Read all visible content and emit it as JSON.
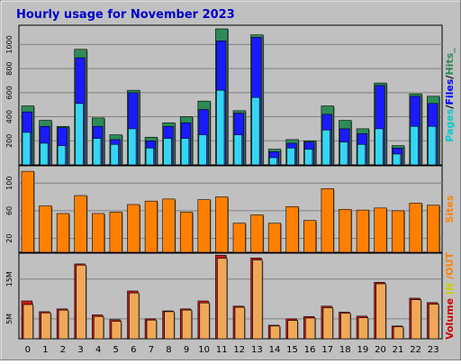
{
  "chart_data": {
    "title": "Hourly usage for November 2023",
    "hours": [
      "0",
      "1",
      "2",
      "3",
      "4",
      "5",
      "6",
      "7",
      "8",
      "9",
      "10",
      "11",
      "12",
      "13",
      "14",
      "15",
      "16",
      "17",
      "18",
      "19",
      "20",
      "21",
      "22",
      "23"
    ],
    "panels": [
      {
        "type": "bar",
        "side_label": [
          "Pages",
          "/",
          "Files",
          "/",
          "Hits",
          "_"
        ],
        "yticks": [
          200,
          400,
          600,
          800,
          1000
        ],
        "ylim": [
          0,
          1160
        ],
        "series": [
          {
            "name": "Hits",
            "color": "#2e8b57",
            "values": [
              490,
              370,
              320,
              960,
              390,
              250,
              620,
              230,
              350,
              400,
              530,
              1130,
              450,
              1080,
              130,
              210,
              200,
              490,
              370,
              300,
              680,
              160,
              590,
              570
            ]
          },
          {
            "name": "Files",
            "color": "#1a1aff",
            "values": [
              440,
              320,
              310,
              890,
              320,
              210,
              600,
              200,
              320,
              350,
              460,
              1030,
              430,
              1060,
              110,
              180,
              190,
              420,
              300,
              260,
              660,
              140,
              570,
              510
            ]
          },
          {
            "name": "Pages",
            "color": "#33d6f5",
            "values": [
              270,
              180,
              160,
              510,
              220,
              170,
              300,
              140,
              220,
              220,
              250,
              620,
              250,
              560,
              60,
              140,
              130,
              290,
              190,
              170,
              300,
              90,
              320,
              320
            ]
          }
        ]
      },
      {
        "type": "bar",
        "side_label": [
          "Sites"
        ],
        "yticks": [
          20,
          60,
          100
        ],
        "ylim": [
          0,
          125
        ],
        "series": [
          {
            "name": "Sites",
            "color": "#ff8000",
            "values": [
              117,
              67,
              56,
              82,
              56,
              58,
              69,
              74,
              77,
              58,
              76,
              80,
              42,
              54,
              42,
              66,
              46,
              92,
              62,
              61,
              64,
              60,
              71,
              68
            ]
          }
        ]
      },
      {
        "type": "bar",
        "side_label": [
          "Volume",
          " ",
          "IN",
          " ",
          "/OUT"
        ],
        "yticks": [
          5,
          15
        ],
        "ytick_labels": [
          "5M",
          "15M"
        ],
        "ylim": [
          0,
          21.5
        ],
        "series": [
          {
            "name": "Volume",
            "color": "#cc1a1a",
            "values": [
              9.5,
              6.8,
              7.5,
              18.8,
              6.0,
              4.8,
              12.0,
              5.0,
              7.0,
              7.5,
              9.5,
              21.0,
              8.2,
              20.3,
              3.4,
              5.0,
              5.6,
              8.2,
              6.7,
              5.7,
              14.2,
              3.2,
              10.2,
              9.1
            ]
          },
          {
            "name": "IN",
            "color": "#ffcc00",
            "values": [
              8.6,
              6.5,
              7.2,
              18.5,
              5.6,
              4.4,
              11.5,
              4.7,
              6.8,
              7.2,
              9.0,
              20.2,
              7.9,
              19.8,
              3.2,
              4.6,
              5.2,
              7.8,
              6.4,
              5.3,
              13.8,
              3.0,
              9.8,
              8.7
            ]
          },
          {
            "name": "OUT",
            "color": "#f0a858",
            "values": [
              8.6,
              6.5,
              7.2,
              18.5,
              5.6,
              4.4,
              11.5,
              4.7,
              6.8,
              7.2,
              9.0,
              20.2,
              7.9,
              19.8,
              3.2,
              4.6,
              5.2,
              7.8,
              6.4,
              5.3,
              13.8,
              3.0,
              9.8,
              8.7
            ]
          }
        ]
      }
    ],
    "label_colors": {
      "Pages": "#00cccc",
      "/": "#000000",
      "Files": "#0000ff",
      "Hits": "#2e8b57",
      "_": "#2e8b57",
      "Sites": "#ff8000",
      "Volume": "#cc0000",
      "IN": "#cccc00",
      "/OUT": "#ff8000",
      " ": "#000000"
    },
    "grid": true
  }
}
